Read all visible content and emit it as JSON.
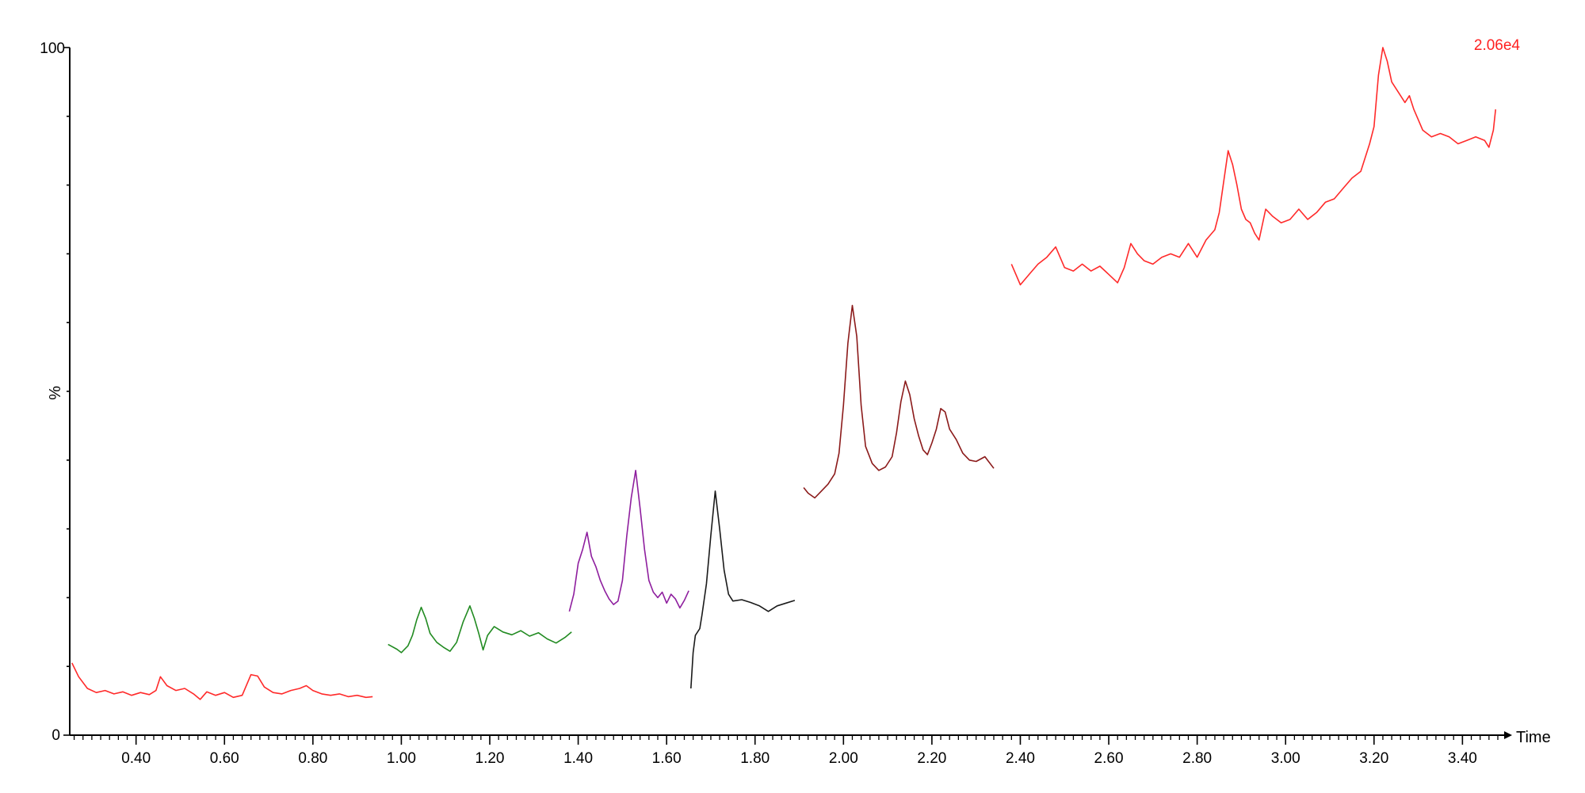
{
  "chart_data": {
    "type": "line",
    "title": "",
    "xlabel": "Time",
    "ylabel": "%",
    "intensity_label": "2.06e4",
    "intensity_color": "#ff2020",
    "xlim": [
      0.25,
      3.48
    ],
    "ylim": [
      0,
      100
    ],
    "x_ticks": [
      0.4,
      0.6,
      0.8,
      1.0,
      1.2,
      1.4,
      1.6,
      1.8,
      2.0,
      2.2,
      2.4,
      2.6,
      2.8,
      3.0,
      3.2,
      3.4
    ],
    "x_tick_labels": [
      "0.40",
      "0.60",
      "0.80",
      "1.00",
      "1.20",
      "1.40",
      "1.60",
      "1.80",
      "2.00",
      "2.20",
      "2.40",
      "2.60",
      "2.80",
      "3.00",
      "3.20",
      "3.40"
    ],
    "y_tick_labels": [
      "0",
      "%",
      "100"
    ],
    "grid": false,
    "series": [
      {
        "color": "#ff2a2a",
        "points": [
          [
            0.255,
            10.5
          ],
          [
            0.27,
            8.5
          ],
          [
            0.29,
            6.8
          ],
          [
            0.31,
            6.2
          ],
          [
            0.33,
            6.5
          ],
          [
            0.35,
            6.0
          ],
          [
            0.37,
            6.3
          ],
          [
            0.39,
            5.8
          ],
          [
            0.41,
            6.2
          ],
          [
            0.43,
            5.9
          ],
          [
            0.445,
            6.5
          ],
          [
            0.455,
            8.5
          ],
          [
            0.47,
            7.2
          ],
          [
            0.49,
            6.5
          ],
          [
            0.51,
            6.8
          ],
          [
            0.53,
            6.0
          ],
          [
            0.545,
            5.2
          ],
          [
            0.56,
            6.3
          ],
          [
            0.58,
            5.8
          ],
          [
            0.6,
            6.2
          ],
          [
            0.62,
            5.5
          ],
          [
            0.64,
            5.8
          ],
          [
            0.66,
            8.8
          ],
          [
            0.675,
            8.6
          ],
          [
            0.69,
            7.0
          ],
          [
            0.71,
            6.2
          ],
          [
            0.73,
            6.0
          ],
          [
            0.75,
            6.5
          ],
          [
            0.77,
            6.8
          ],
          [
            0.785,
            7.2
          ],
          [
            0.8,
            6.5
          ],
          [
            0.82,
            6.0
          ],
          [
            0.84,
            5.8
          ],
          [
            0.86,
            6.0
          ],
          [
            0.88,
            5.6
          ],
          [
            0.9,
            5.8
          ],
          [
            0.92,
            5.5
          ],
          [
            0.935,
            5.6
          ]
        ]
      },
      {
        "color": "#228b22",
        "points": [
          [
            0.97,
            13.2
          ],
          [
            0.99,
            12.5
          ],
          [
            1.0,
            12.0
          ],
          [
            1.015,
            13.0
          ],
          [
            1.025,
            14.5
          ],
          [
            1.035,
            16.8
          ],
          [
            1.045,
            18.6
          ],
          [
            1.055,
            17.0
          ],
          [
            1.065,
            14.8
          ],
          [
            1.08,
            13.5
          ],
          [
            1.095,
            12.8
          ],
          [
            1.11,
            12.2
          ],
          [
            1.125,
            13.5
          ],
          [
            1.14,
            16.5
          ],
          [
            1.155,
            18.8
          ],
          [
            1.165,
            17.0
          ],
          [
            1.175,
            14.8
          ],
          [
            1.185,
            12.4
          ],
          [
            1.195,
            14.5
          ],
          [
            1.21,
            15.8
          ],
          [
            1.23,
            15.0
          ],
          [
            1.25,
            14.6
          ],
          [
            1.27,
            15.2
          ],
          [
            1.29,
            14.4
          ],
          [
            1.31,
            14.9
          ],
          [
            1.33,
            14.0
          ],
          [
            1.35,
            13.4
          ],
          [
            1.37,
            14.2
          ],
          [
            1.385,
            15.0
          ]
        ]
      },
      {
        "color": "#8e1e9e",
        "points": [
          [
            1.38,
            18.0
          ],
          [
            1.39,
            20.5
          ],
          [
            1.4,
            25.0
          ],
          [
            1.41,
            27.0
          ],
          [
            1.42,
            29.5
          ],
          [
            1.43,
            26.0
          ],
          [
            1.44,
            24.5
          ],
          [
            1.45,
            22.5
          ],
          [
            1.46,
            21.0
          ],
          [
            1.47,
            19.8
          ],
          [
            1.48,
            19.0
          ],
          [
            1.49,
            19.5
          ],
          [
            1.5,
            22.5
          ],
          [
            1.51,
            29.0
          ],
          [
            1.52,
            34.5
          ],
          [
            1.53,
            38.5
          ],
          [
            1.54,
            33.0
          ],
          [
            1.55,
            27.0
          ],
          [
            1.56,
            22.5
          ],
          [
            1.57,
            20.8
          ],
          [
            1.58,
            20.0
          ],
          [
            1.59,
            20.8
          ],
          [
            1.6,
            19.2
          ],
          [
            1.61,
            20.5
          ],
          [
            1.62,
            19.8
          ],
          [
            1.63,
            18.5
          ],
          [
            1.64,
            19.6
          ],
          [
            1.65,
            21.0
          ]
        ]
      },
      {
        "color": "#1a1a1a",
        "points": [
          [
            1.655,
            6.8
          ],
          [
            1.66,
            12.0
          ],
          [
            1.665,
            14.5
          ],
          [
            1.675,
            15.5
          ],
          [
            1.68,
            17.5
          ],
          [
            1.69,
            22.0
          ],
          [
            1.7,
            29.0
          ],
          [
            1.71,
            35.5
          ],
          [
            1.72,
            30.0
          ],
          [
            1.73,
            24.0
          ],
          [
            1.74,
            20.5
          ],
          [
            1.75,
            19.5
          ],
          [
            1.77,
            19.7
          ],
          [
            1.79,
            19.3
          ],
          [
            1.81,
            18.8
          ],
          [
            1.83,
            18.0
          ],
          [
            1.85,
            18.8
          ],
          [
            1.87,
            19.2
          ],
          [
            1.89,
            19.6
          ]
        ]
      },
      {
        "color": "#8b1a1a",
        "points": [
          [
            1.91,
            36.0
          ],
          [
            1.92,
            35.2
          ],
          [
            1.935,
            34.5
          ],
          [
            1.95,
            35.5
          ],
          [
            1.965,
            36.5
          ],
          [
            1.98,
            38.0
          ],
          [
            1.99,
            41.0
          ],
          [
            2.0,
            48.0
          ],
          [
            2.01,
            57.0
          ],
          [
            2.02,
            62.5
          ],
          [
            2.03,
            58.0
          ],
          [
            2.04,
            48.0
          ],
          [
            2.05,
            42.0
          ],
          [
            2.065,
            39.5
          ],
          [
            2.08,
            38.5
          ],
          [
            2.095,
            39.0
          ],
          [
            2.11,
            40.5
          ],
          [
            2.12,
            44.0
          ],
          [
            2.13,
            48.5
          ],
          [
            2.14,
            51.5
          ],
          [
            2.15,
            49.5
          ],
          [
            2.16,
            46.0
          ],
          [
            2.17,
            43.5
          ],
          [
            2.18,
            41.5
          ],
          [
            2.19,
            40.8
          ],
          [
            2.2,
            42.5
          ],
          [
            2.21,
            44.5
          ],
          [
            2.22,
            47.5
          ],
          [
            2.23,
            47.0
          ],
          [
            2.24,
            44.5
          ],
          [
            2.255,
            43.0
          ],
          [
            2.27,
            41.0
          ],
          [
            2.285,
            40.0
          ],
          [
            2.3,
            39.8
          ],
          [
            2.32,
            40.5
          ],
          [
            2.34,
            38.8
          ]
        ]
      },
      {
        "color": "#ff2a2a",
        "points": [
          [
            2.38,
            68.5
          ],
          [
            2.39,
            67.0
          ],
          [
            2.4,
            65.5
          ],
          [
            2.42,
            67.0
          ],
          [
            2.44,
            68.5
          ],
          [
            2.46,
            69.5
          ],
          [
            2.48,
            71.0
          ],
          [
            2.5,
            68.0
          ],
          [
            2.52,
            67.5
          ],
          [
            2.54,
            68.5
          ],
          [
            2.56,
            67.5
          ],
          [
            2.58,
            68.2
          ],
          [
            2.6,
            67.0
          ],
          [
            2.62,
            65.8
          ],
          [
            2.635,
            68.0
          ],
          [
            2.65,
            71.5
          ],
          [
            2.665,
            70.0
          ],
          [
            2.68,
            69.0
          ],
          [
            2.7,
            68.5
          ],
          [
            2.72,
            69.5
          ],
          [
            2.74,
            70.0
          ],
          [
            2.76,
            69.5
          ],
          [
            2.78,
            71.5
          ],
          [
            2.8,
            69.5
          ],
          [
            2.82,
            72.0
          ],
          [
            2.84,
            73.5
          ],
          [
            2.85,
            76.0
          ],
          [
            2.86,
            80.5
          ],
          [
            2.87,
            85.0
          ],
          [
            2.88,
            83.0
          ],
          [
            2.89,
            80.0
          ],
          [
            2.9,
            76.5
          ],
          [
            2.91,
            75.0
          ],
          [
            2.92,
            74.5
          ],
          [
            2.93,
            73.0
          ],
          [
            2.94,
            72.0
          ],
          [
            2.955,
            76.5
          ],
          [
            2.97,
            75.5
          ],
          [
            2.99,
            74.5
          ],
          [
            3.01,
            75.0
          ],
          [
            3.03,
            76.5
          ],
          [
            3.05,
            75.0
          ],
          [
            3.07,
            76.0
          ],
          [
            3.09,
            77.5
          ],
          [
            3.11,
            78.0
          ],
          [
            3.13,
            79.5
          ],
          [
            3.15,
            81.0
          ],
          [
            3.17,
            82.0
          ],
          [
            3.19,
            86.0
          ],
          [
            3.2,
            88.5
          ],
          [
            3.21,
            96.0
          ],
          [
            3.22,
            100.0
          ],
          [
            3.23,
            98.0
          ],
          [
            3.24,
            95.0
          ],
          [
            3.255,
            93.5
          ],
          [
            3.27,
            92.0
          ],
          [
            3.28,
            93.0
          ],
          [
            3.29,
            91.0
          ],
          [
            3.3,
            89.5
          ],
          [
            3.31,
            88.0
          ],
          [
            3.33,
            87.0
          ],
          [
            3.35,
            87.5
          ],
          [
            3.37,
            87.0
          ],
          [
            3.39,
            86.0
          ],
          [
            3.41,
            86.5
          ],
          [
            3.43,
            87.0
          ],
          [
            3.45,
            86.5
          ],
          [
            3.46,
            85.5
          ],
          [
            3.47,
            88.0
          ],
          [
            3.475,
            91.0
          ]
        ]
      }
    ]
  }
}
